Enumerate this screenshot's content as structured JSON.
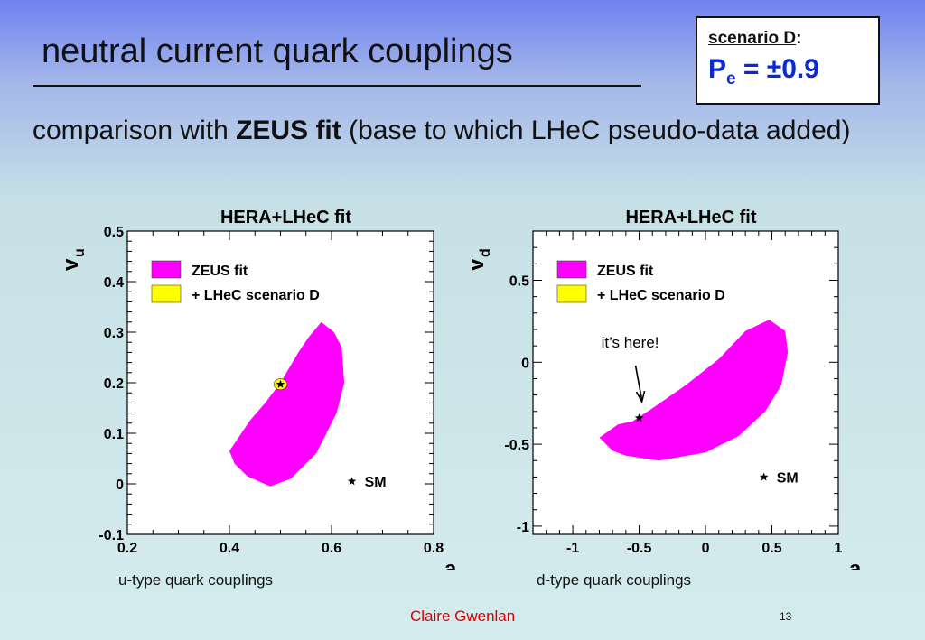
{
  "slide": {
    "title": "neutral current quark couplings",
    "scenario_label": "scenario D",
    "scenario_colon": ":",
    "scenario_value_main": "P",
    "scenario_value_sub": "e",
    "scenario_value_rest": " = ±0.9",
    "body_pre": "comparison with ",
    "body_bold": "ZEUS fit",
    "body_post": " (base to which LHeC pseudo-data added)",
    "caption_left": "u-type quark couplings",
    "caption_right": "d-type quark couplings",
    "author": "Claire  Gwenlan",
    "page_number": "13"
  },
  "colors": {
    "zeus_fill": "#ff00ff",
    "lhec_fill": "#ffff00",
    "scenario_value": "#0a2ad8",
    "author": "#d40000"
  },
  "chart_data": [
    {
      "type": "area",
      "title": "HERA+LHeC fit",
      "xlabel": "a",
      "xlabel_sub": "u",
      "ylabel": "v",
      "ylabel_sub": "u",
      "xlim": [
        0.2,
        0.8
      ],
      "ylim": [
        -0.1,
        0.5
      ],
      "xticks": [
        0.2,
        0.4,
        0.6,
        0.8
      ],
      "xtick_labels": [
        "0.2",
        "0.4",
        "0.6",
        "0.8"
      ],
      "yticks": [
        -0.1,
        0,
        0.1,
        0.2,
        0.3,
        0.4,
        0.5
      ],
      "ytick_labels": [
        "-0.1",
        "0",
        "0.1",
        "0.2",
        "0.3",
        "0.4",
        "0.5"
      ],
      "x_minor_step": 0.05,
      "y_minor_step": 0.02,
      "grid": false,
      "legend_position": "top-left",
      "legend": [
        {
          "name": "ZEUS fit",
          "color": "#ff00ff"
        },
        {
          "name": "+ LHeC scenario D",
          "color": "#ffff00"
        }
      ],
      "sm_label": "SM",
      "sm_marker_xy": [
        0.64,
        0.005
      ],
      "regions": [
        {
          "name": "ZEUS fit",
          "color": "#ff00ff",
          "polygon": [
            [
              0.4,
              0.065
            ],
            [
              0.44,
              0.125
            ],
            [
              0.47,
              0.16
            ],
            [
              0.5,
              0.2
            ],
            [
              0.535,
              0.26
            ],
            [
              0.555,
              0.29
            ],
            [
              0.58,
              0.32
            ],
            [
              0.605,
              0.3
            ],
            [
              0.62,
              0.27
            ],
            [
              0.625,
              0.2
            ],
            [
              0.61,
              0.14
            ],
            [
              0.57,
              0.06
            ],
            [
              0.52,
              0.01
            ],
            [
              0.48,
              -0.005
            ],
            [
              0.435,
              0.015
            ],
            [
              0.41,
              0.04
            ]
          ]
        },
        {
          "name": "+ LHeC scenario D",
          "color": "#ffff00",
          "ellipse": {
            "cx": 0.5,
            "cy": 0.197,
            "rx": 0.013,
            "ry": 0.011
          }
        }
      ],
      "sm_point": {
        "x": 0.5,
        "y": 0.197
      }
    },
    {
      "type": "area",
      "title": "HERA+LHeC fit",
      "xlabel": "a",
      "xlabel_sub": "d",
      "ylabel": "v",
      "ylabel_sub": "d",
      "xlim": [
        -1.3,
        1.0
      ],
      "ylim": [
        -1.05,
        0.8
      ],
      "xticks": [
        -1,
        -0.5,
        0,
        0.5,
        1
      ],
      "xtick_labels": [
        "-1",
        "-0.5",
        "0",
        "0.5",
        "1"
      ],
      "yticks": [
        -1,
        -0.5,
        0,
        0.5
      ],
      "ytick_labels": [
        "-1",
        "-0.5",
        "0",
        "0.5"
      ],
      "x_minor_step": 0.1,
      "y_minor_step": 0.1,
      "grid": false,
      "legend_position": "top-left",
      "legend": [
        {
          "name": "ZEUS fit",
          "color": "#ff00ff"
        },
        {
          "name": "+ LHeC scenario D",
          "color": "#ffff00"
        }
      ],
      "sm_label": "SM",
      "sm_marker_xy": [
        0.44,
        -0.7
      ],
      "annotation": "it’s here!",
      "regions": [
        {
          "name": "ZEUS fit",
          "color": "#ff00ff",
          "polygon": [
            [
              -0.8,
              -0.46
            ],
            [
              -0.66,
              -0.38
            ],
            [
              -0.55,
              -0.36
            ],
            [
              -0.4,
              -0.28
            ],
            [
              -0.15,
              -0.14
            ],
            [
              0.1,
              0.02
            ],
            [
              0.3,
              0.19
            ],
            [
              0.48,
              0.26
            ],
            [
              0.6,
              0.19
            ],
            [
              0.62,
              0.06
            ],
            [
              0.57,
              -0.14
            ],
            [
              0.45,
              -0.3
            ],
            [
              0.25,
              -0.45
            ],
            [
              0.0,
              -0.55
            ],
            [
              -0.35,
              -0.6
            ],
            [
              -0.6,
              -0.57
            ],
            [
              -0.7,
              -0.54
            ]
          ]
        },
        {
          "name": "+ LHeC scenario D",
          "color": "#ffff00",
          "ellipse": {
            "cx": -0.5,
            "cy": -0.34,
            "rx": 0.012,
            "ry": 0.012
          }
        }
      ],
      "sm_point": {
        "x": -0.5,
        "y": -0.34
      }
    }
  ]
}
